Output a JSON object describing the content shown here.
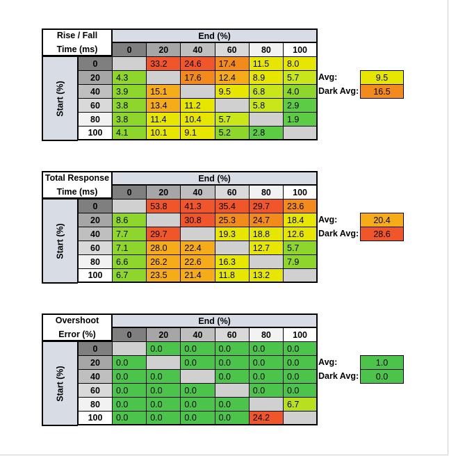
{
  "chart_data": [
    {
      "type": "heatmap",
      "title_lines": [
        "Rise / Fall",
        "Time (ms)"
      ],
      "xlabel": "End (%)",
      "ylabel": "Start (%)",
      "columns": [
        "0",
        "20",
        "40",
        "60",
        "80",
        "100"
      ],
      "rows": [
        "0",
        "20",
        "40",
        "60",
        "80",
        "100"
      ],
      "values": [
        [
          null,
          "33.2",
          "24.6",
          "17.4",
          "11.5",
          "8.0"
        ],
        [
          "4.3",
          null,
          "17.6",
          "12.4",
          "8.9",
          "5.7"
        ],
        [
          "3.9",
          "15.1",
          null,
          "9.5",
          "6.8",
          "4.0"
        ],
        [
          "3.8",
          "13.4",
          "11.2",
          null,
          "5.8",
          "2.9"
        ],
        [
          "3.8",
          "11.4",
          "10.4",
          "5.7",
          null,
          "1.9"
        ],
        [
          "4.1",
          "10.1",
          "9.1",
          "5.2",
          "2.8",
          null
        ]
      ],
      "colors": [
        [
          null,
          "#f0562a",
          "#f0562a",
          "#f28a1c",
          "#e6e600",
          "#e6e600"
        ],
        [
          "#8fd62c",
          null,
          "#f28a1c",
          "#f5ac18",
          "#e6e600",
          "#c8e61a"
        ],
        [
          "#8fd62c",
          "#f5ac18",
          null,
          "#e6e600",
          "#c8e61a",
          "#8fd62c"
        ],
        [
          "#8fd62c",
          "#f5ac18",
          "#e6e600",
          null,
          "#c8e61a",
          "#5ccc44"
        ],
        [
          "#8fd62c",
          "#e6e600",
          "#e6e600",
          "#c8e61a",
          null,
          "#5ccc44"
        ],
        [
          "#8fd62c",
          "#e6e600",
          "#e6e600",
          "#8fd62c",
          "#5ccc44",
          null
        ]
      ],
      "avg_label": "Avg:",
      "avg_value": "9.5",
      "avg_color": "#e6e600",
      "dark_avg_label": "Dark Avg:",
      "dark_avg_value": "16.5",
      "dark_avg_color": "#f28a1c"
    },
    {
      "type": "heatmap",
      "title_lines": [
        "Total Response",
        "Time (ms)"
      ],
      "xlabel": "End (%)",
      "ylabel": "Start (%)",
      "columns": [
        "0",
        "20",
        "40",
        "60",
        "80",
        "100"
      ],
      "rows": [
        "0",
        "20",
        "40",
        "60",
        "80",
        "100"
      ],
      "values": [
        [
          null,
          "53.8",
          "41.3",
          "35.4",
          "29.7",
          "23.6"
        ],
        [
          "8.6",
          null,
          "30.8",
          "25.3",
          "24.7",
          "18.4"
        ],
        [
          "7.7",
          "29.7",
          null,
          "19.3",
          "18.8",
          "12.6"
        ],
        [
          "7.1",
          "28.0",
          "22.4",
          null,
          "12.7",
          "5.7"
        ],
        [
          "6.6",
          "26.2",
          "22.6",
          "16.3",
          null,
          "7.9"
        ],
        [
          "6.7",
          "23.5",
          "21.4",
          "11.8",
          "13.2",
          null
        ]
      ],
      "colors": [
        [
          null,
          "#f0562a",
          "#f0562a",
          "#f0562a",
          "#f0562a",
          "#f28a1c"
        ],
        [
          "#8fd62c",
          null,
          "#f0562a",
          "#f28a1c",
          "#f28a1c",
          "#e6e600"
        ],
        [
          "#8fd62c",
          "#f0562a",
          null,
          "#e6e600",
          "#e6e600",
          "#e6e600"
        ],
        [
          "#8fd62c",
          "#f5ac18",
          "#f5ac18",
          null,
          "#e6e600",
          "#8fd62c"
        ],
        [
          "#8fd62c",
          "#f5ac18",
          "#f5ac18",
          "#e6e600",
          null,
          "#8fd62c"
        ],
        [
          "#8fd62c",
          "#f5ac18",
          "#f5ac18",
          "#e6e600",
          "#e6e600",
          null
        ]
      ],
      "avg_label": "Avg:",
      "avg_value": "20.4",
      "avg_color": "#f5ac18",
      "dark_avg_label": "Dark Avg:",
      "dark_avg_value": "28.6",
      "dark_avg_color": "#f0562a"
    },
    {
      "type": "heatmap",
      "title_lines": [
        "Overshoot",
        "Error (%)"
      ],
      "xlabel": "End (%)",
      "ylabel": "Start (%)",
      "columns": [
        "0",
        "20",
        "40",
        "60",
        "80",
        "100"
      ],
      "rows": [
        "0",
        "20",
        "40",
        "60",
        "80",
        "100"
      ],
      "values": [
        [
          null,
          "0.0",
          "0.0",
          "0.0",
          "0.0",
          "0.0"
        ],
        [
          "0.0",
          null,
          "0.0",
          "0.0",
          "0.0",
          "0.0"
        ],
        [
          "0.0",
          "0.0",
          null,
          "0.0",
          "0.0",
          "0.0"
        ],
        [
          "0.0",
          "0.0",
          "0.0",
          null,
          "0.0",
          "0.0"
        ],
        [
          "0.0",
          "0.0",
          "0.0",
          "0.0",
          null,
          "6.7"
        ],
        [
          "0.0",
          "0.0",
          "0.0",
          "0.0",
          "24.2",
          null
        ]
      ],
      "colors": [
        [
          null,
          "#4cc44c",
          "#4cc44c",
          "#4cc44c",
          "#4cc44c",
          "#4cc44c"
        ],
        [
          "#4cc44c",
          null,
          "#4cc44c",
          "#4cc44c",
          "#4cc44c",
          "#4cc44c"
        ],
        [
          "#4cc44c",
          "#4cc44c",
          null,
          "#4cc44c",
          "#4cc44c",
          "#4cc44c"
        ],
        [
          "#4cc44c",
          "#4cc44c",
          "#4cc44c",
          null,
          "#4cc44c",
          "#4cc44c"
        ],
        [
          "#4cc44c",
          "#4cc44c",
          "#4cc44c",
          "#4cc44c",
          null,
          "#b8e01e"
        ],
        [
          "#4cc44c",
          "#4cc44c",
          "#4cc44c",
          "#4cc44c",
          "#f0562a",
          null
        ]
      ],
      "avg_label": "Avg:",
      "avg_value": "1.0",
      "avg_color": "#4cc44c",
      "dark_avg_label": "Dark Avg:",
      "dark_avg_value": "0.0",
      "dark_avg_color": "#4cc44c"
    }
  ],
  "style": {
    "header_bg": "#d8dce4",
    "empty_cell": "#d0d0d0",
    "shade_colors": [
      "#7f7f7f",
      "#a6a6a6",
      "#bfbfbf",
      "#d9d9d9",
      "#f2f2f2",
      "#ffffff"
    ]
  }
}
